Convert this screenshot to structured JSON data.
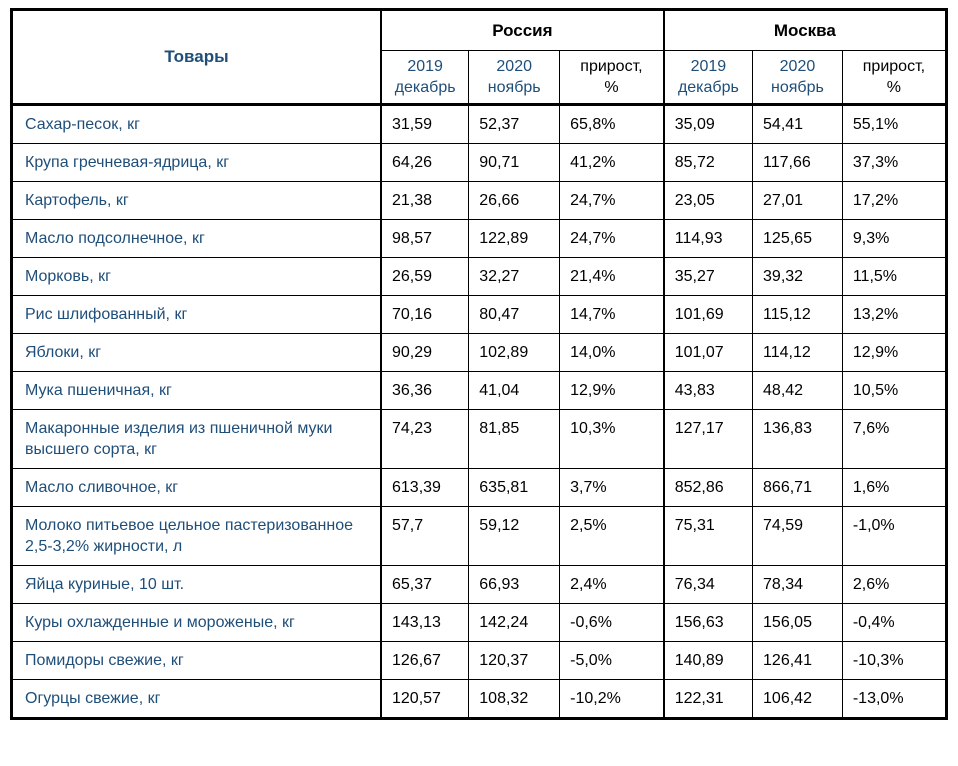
{
  "table": {
    "products_header": "Товары",
    "groups": [
      {
        "label": "Россия"
      },
      {
        "label": "Москва"
      }
    ],
    "sub_columns": [
      {
        "label": "2019\nдекабрь",
        "type": "year"
      },
      {
        "label": "2020\nноябрь",
        "type": "year"
      },
      {
        "label": "прирост,\n%",
        "type": "growth"
      },
      {
        "label": "2019\nдекабрь",
        "type": "year"
      },
      {
        "label": "2020\nноябрь",
        "type": "year"
      },
      {
        "label": "прирост,\n%",
        "type": "growth"
      }
    ],
    "rows": [
      {
        "name": "Сахар-песок, кг",
        "values": [
          "31,59",
          "52,37",
          "65,8%",
          "35,09",
          "54,41",
          "55,1%"
        ]
      },
      {
        "name": "Крупа гречневая-ядрица, кг",
        "values": [
          "64,26",
          "90,71",
          "41,2%",
          "85,72",
          "117,66",
          "37,3%"
        ]
      },
      {
        "name": "Картофель, кг",
        "values": [
          "21,38",
          "26,66",
          "24,7%",
          "23,05",
          "27,01",
          "17,2%"
        ]
      },
      {
        "name": "Масло подсолнечное, кг",
        "values": [
          "98,57",
          "122,89",
          "24,7%",
          "114,93",
          "125,65",
          "9,3%"
        ]
      },
      {
        "name": "Морковь, кг",
        "values": [
          "26,59",
          "32,27",
          "21,4%",
          "35,27",
          "39,32",
          "11,5%"
        ]
      },
      {
        "name": "Рис шлифованный, кг",
        "values": [
          "70,16",
          "80,47",
          "14,7%",
          "101,69",
          "115,12",
          "13,2%"
        ]
      },
      {
        "name": "Яблоки, кг",
        "values": [
          "90,29",
          "102,89",
          "14,0%",
          "101,07",
          "114,12",
          "12,9%"
        ]
      },
      {
        "name": "Мука пшеничная, кг",
        "values": [
          "36,36",
          "41,04",
          "12,9%",
          "43,83",
          "48,42",
          "10,5%"
        ]
      },
      {
        "name": "Макаронные изделия из пшеничной муки высшего сорта, кг",
        "values": [
          "74,23",
          "81,85",
          "10,3%",
          "127,17",
          "136,83",
          "7,6%"
        ]
      },
      {
        "name": "Масло сливочное, кг",
        "values": [
          "613,39",
          "635,81",
          "3,7%",
          "852,86",
          "866,71",
          "1,6%"
        ]
      },
      {
        "name": "Молоко питьевое цельное пастеризованное 2,5-3,2% жирности, л",
        "values": [
          "57,7",
          "59,12",
          "2,5%",
          "75,31",
          "74,59",
          "-1,0%"
        ]
      },
      {
        "name": "Яйца куриные, 10 шт.",
        "values": [
          "65,37",
          "66,93",
          "2,4%",
          "76,34",
          "78,34",
          "2,6%"
        ]
      },
      {
        "name": "Куры охлажденные и мороженые, кг",
        "values": [
          "143,13",
          "142,24",
          "-0,6%",
          "156,63",
          "156,05",
          "-0,4%"
        ]
      },
      {
        "name": "Помидоры свежие, кг",
        "values": [
          "126,67",
          "120,37",
          "-5,0%",
          "140,89",
          "126,41",
          "-10,3%"
        ]
      },
      {
        "name": "Огурцы свежие, кг",
        "values": [
          "120,57",
          "108,32",
          "-10,2%",
          "122,31",
          "106,42",
          "-13,0%"
        ]
      }
    ],
    "colors": {
      "label_blue": "#1F4E79",
      "value_black": "#000000",
      "border_black": "#000000",
      "background": "#FFFFFF"
    },
    "column_cell_names": [
      "russia-2019-cell",
      "russia-2020-cell",
      "russia-growth-cell",
      "moscow-2019-cell",
      "moscow-2020-cell",
      "moscow-growth-cell"
    ]
  }
}
